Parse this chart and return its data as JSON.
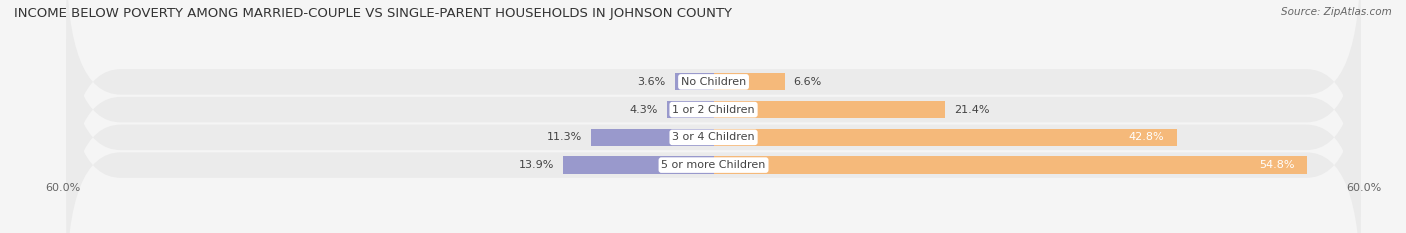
{
  "title": "INCOME BELOW POVERTY AMONG MARRIED-COUPLE VS SINGLE-PARENT HOUSEHOLDS IN JOHNSON COUNTY",
  "source": "Source: ZipAtlas.com",
  "categories": [
    "No Children",
    "1 or 2 Children",
    "3 or 4 Children",
    "5 or more Children"
  ],
  "married_values": [
    3.6,
    4.3,
    11.3,
    13.9
  ],
  "single_values": [
    6.6,
    21.4,
    42.8,
    54.8
  ],
  "xlim_left": -60.0,
  "xlim_right": 60.0,
  "married_color": "#9999cc",
  "single_color": "#f5b97a",
  "bar_height": 0.62,
  "row_bg_color": "#ebebeb",
  "background_color": "#f5f5f5",
  "title_fontsize": 9.5,
  "label_fontsize": 8.0,
  "tick_fontsize": 8.0,
  "legend_fontsize": 8.0,
  "source_fontsize": 7.5
}
